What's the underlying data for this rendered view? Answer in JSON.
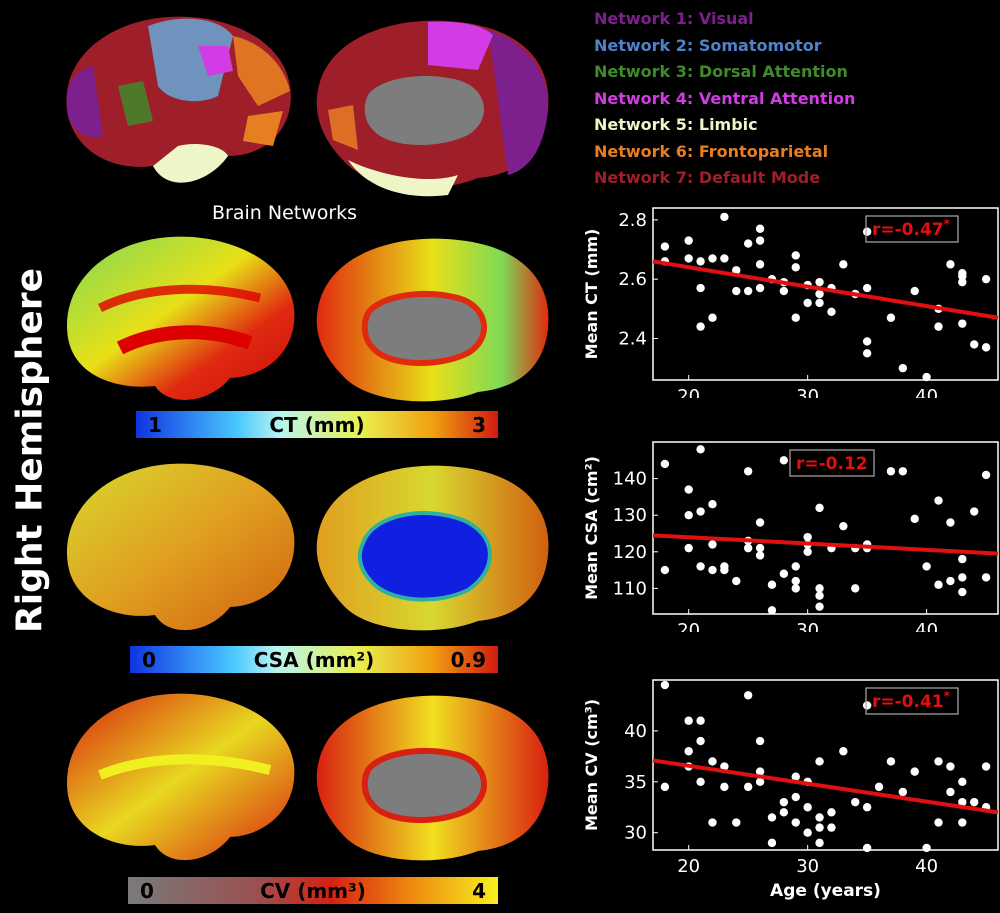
{
  "side_label": "Right Hemisphere",
  "networks_title": "Brain Networks",
  "networks": [
    {
      "label": "Network 1: Visual",
      "color": "#7d1f8c"
    },
    {
      "label": "Network 2: Somatomotor",
      "color": "#4e82c9"
    },
    {
      "label": "Network 3: Dorsal Attention",
      "color": "#3f8a2a"
    },
    {
      "label": "Network 4: Ventral Attention",
      "color": "#d13ce4"
    },
    {
      "label": "Network 5: Limbic",
      "color": "#eef5c6"
    },
    {
      "label": "Network 6: Frontoparietal",
      "color": "#e67e22"
    },
    {
      "label": "Network 7: Default Mode",
      "color": "#9e1f2a"
    }
  ],
  "colorbars": [
    {
      "min": "1",
      "max": "3",
      "label": "CT (mm)"
    },
    {
      "min": "0",
      "max": "0.9",
      "label": "CSA (mm²)"
    },
    {
      "min": "0",
      "max": "4",
      "label": "CV (mm³)"
    }
  ],
  "chart_data": [
    {
      "type": "scatter",
      "ylabel": "Mean CT (mm)",
      "xlabel": "",
      "xlim": [
        17,
        46
      ],
      "ylim": [
        2.26,
        2.84
      ],
      "xticks": [
        20,
        30,
        40
      ],
      "yticks": [
        "2.4",
        "2.6",
        "2.8"
      ],
      "annotation": "r=-0.47*",
      "fit": {
        "x": [
          17,
          46
        ],
        "y": [
          2.66,
          2.47
        ]
      },
      "points": [
        [
          18,
          2.71
        ],
        [
          18,
          2.66
        ],
        [
          20,
          2.73
        ],
        [
          20,
          2.67
        ],
        [
          21,
          2.66
        ],
        [
          21,
          2.57
        ],
        [
          21,
          2.44
        ],
        [
          22,
          2.67
        ],
        [
          22,
          2.47
        ],
        [
          23,
          2.81
        ],
        [
          23,
          2.67
        ],
        [
          24,
          2.56
        ],
        [
          24,
          2.63
        ],
        [
          25,
          2.72
        ],
        [
          25,
          2.56
        ],
        [
          26,
          2.77
        ],
        [
          26,
          2.73
        ],
        [
          26,
          2.65
        ],
        [
          26,
          2.57
        ],
        [
          27,
          2.6
        ],
        [
          28,
          2.59
        ],
        [
          28,
          2.56
        ],
        [
          29,
          2.68
        ],
        [
          29,
          2.64
        ],
        [
          29,
          2.47
        ],
        [
          30,
          2.58
        ],
        [
          30,
          2.52
        ],
        [
          31,
          2.59
        ],
        [
          31,
          2.55
        ],
        [
          31,
          2.52
        ],
        [
          32,
          2.57
        ],
        [
          32,
          2.49
        ],
        [
          33,
          2.65
        ],
        [
          34,
          2.55
        ],
        [
          35,
          2.76
        ],
        [
          35,
          2.57
        ],
        [
          35,
          2.39
        ],
        [
          35,
          2.35
        ],
        [
          37,
          2.47
        ],
        [
          38,
          2.3
        ],
        [
          39,
          2.56
        ],
        [
          40,
          2.27
        ],
        [
          41,
          2.44
        ],
        [
          41,
          2.5
        ],
        [
          42,
          2.65
        ],
        [
          43,
          2.62
        ],
        [
          43,
          2.61
        ],
        [
          43,
          2.59
        ],
        [
          43,
          2.45
        ],
        [
          44,
          2.38
        ],
        [
          45,
          2.6
        ],
        [
          45,
          2.37
        ]
      ]
    },
    {
      "type": "scatter",
      "ylabel": "Mean CSA (cm²)",
      "xlabel": "",
      "xlim": [
        17,
        46
      ],
      "ylim": [
        103,
        150
      ],
      "xticks": [
        20,
        30,
        40
      ],
      "yticks": [
        "110",
        "120",
        "130",
        "140"
      ],
      "annotation": "r=-0.12",
      "fit": {
        "x": [
          17,
          46
        ],
        "y": [
          124.5,
          119.5
        ]
      },
      "points": [
        [
          18,
          144
        ],
        [
          18,
          115
        ],
        [
          20,
          137
        ],
        [
          20,
          130
        ],
        [
          20,
          121
        ],
        [
          21,
          148
        ],
        [
          21,
          131
        ],
        [
          21,
          116
        ],
        [
          22,
          133
        ],
        [
          22,
          122
        ],
        [
          22,
          115
        ],
        [
          23,
          116
        ],
        [
          23,
          115
        ],
        [
          24,
          112
        ],
        [
          25,
          142
        ],
        [
          25,
          123
        ],
        [
          25,
          121
        ],
        [
          26,
          128
        ],
        [
          26,
          121
        ],
        [
          26,
          119
        ],
        [
          27,
          111
        ],
        [
          27,
          104
        ],
        [
          28,
          145
        ],
        [
          28,
          114
        ],
        [
          29,
          116
        ],
        [
          29,
          112
        ],
        [
          29,
          110
        ],
        [
          30,
          124
        ],
        [
          30,
          122
        ],
        [
          30,
          120
        ],
        [
          31,
          132
        ],
        [
          31,
          110
        ],
        [
          31,
          108
        ],
        [
          31,
          105
        ],
        [
          32,
          121
        ],
        [
          33,
          127
        ],
        [
          34,
          121
        ],
        [
          34,
          110
        ],
        [
          35,
          122
        ],
        [
          35,
          121
        ],
        [
          37,
          142
        ],
        [
          38,
          142
        ],
        [
          39,
          129
        ],
        [
          40,
          116
        ],
        [
          41,
          134
        ],
        [
          41,
          111
        ],
        [
          42,
          128
        ],
        [
          42,
          112
        ],
        [
          43,
          118
        ],
        [
          43,
          113
        ],
        [
          43,
          109
        ],
        [
          44,
          131
        ],
        [
          45,
          141
        ],
        [
          45,
          113
        ]
      ]
    },
    {
      "type": "scatter",
      "ylabel": "Mean CV (cm³)",
      "xlabel": "Age (years)",
      "xlim": [
        17,
        46
      ],
      "ylim": [
        28.3,
        45
      ],
      "xticks": [
        20,
        30,
        40
      ],
      "yticks": [
        "30",
        "35",
        "40"
      ],
      "annotation": "r=-0.41*",
      "fit": {
        "x": [
          17,
          46
        ],
        "y": [
          37.1,
          32.0
        ]
      },
      "points": [
        [
          18,
          44.5
        ],
        [
          18,
          34.5
        ],
        [
          20,
          41
        ],
        [
          20,
          38
        ],
        [
          20,
          36.5
        ],
        [
          21,
          41
        ],
        [
          21,
          39
        ],
        [
          21,
          35
        ],
        [
          22,
          37
        ],
        [
          22,
          31
        ],
        [
          23,
          36.5
        ],
        [
          23,
          34.5
        ],
        [
          24,
          31
        ],
        [
          25,
          43.5
        ],
        [
          25,
          34.5
        ],
        [
          26,
          39
        ],
        [
          26,
          36
        ],
        [
          26,
          35
        ],
        [
          27,
          31.5
        ],
        [
          27,
          29
        ],
        [
          28,
          33
        ],
        [
          28,
          32
        ],
        [
          29,
          35.5
        ],
        [
          29,
          33.5
        ],
        [
          29,
          31
        ],
        [
          30,
          35
        ],
        [
          30,
          32.5
        ],
        [
          30,
          30
        ],
        [
          31,
          37
        ],
        [
          31,
          31.5
        ],
        [
          31,
          30.5
        ],
        [
          31,
          29
        ],
        [
          32,
          32
        ],
        [
          32,
          30.5
        ],
        [
          33,
          38
        ],
        [
          34,
          33
        ],
        [
          35,
          42.5
        ],
        [
          35,
          32.5
        ],
        [
          35,
          28.5
        ],
        [
          36,
          34.5
        ],
        [
          37,
          37
        ],
        [
          38,
          34
        ],
        [
          39,
          36
        ],
        [
          40,
          28.5
        ],
        [
          41,
          37
        ],
        [
          41,
          31
        ],
        [
          42,
          36.5
        ],
        [
          42,
          34
        ],
        [
          43,
          35
        ],
        [
          43,
          33
        ],
        [
          43,
          31
        ],
        [
          44,
          33
        ],
        [
          45,
          36.5
        ],
        [
          45,
          32.5
        ]
      ]
    }
  ]
}
